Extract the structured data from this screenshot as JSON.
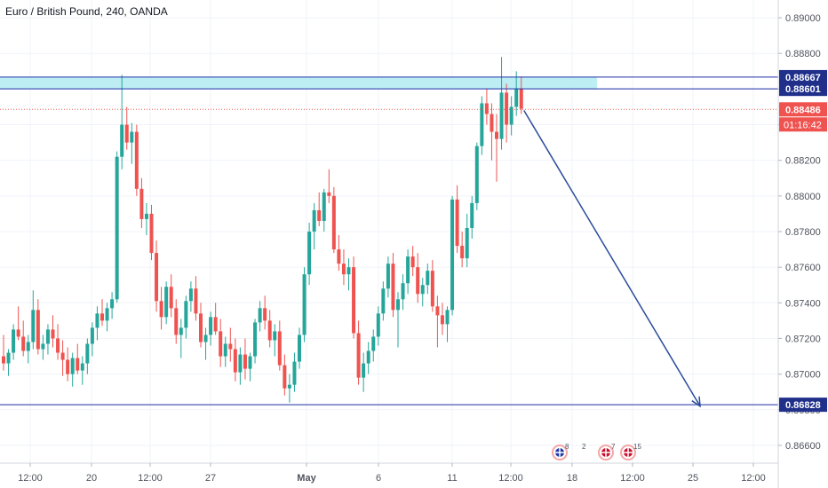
{
  "header": {
    "title": "Euro / British Pound, 240, OANDA"
  },
  "colors": {
    "up": "#26a69a",
    "down": "#ef5350",
    "line": "#1e2ea6",
    "arrow": "#2a4b9b",
    "zone": "#b2ebf2",
    "dark_tag": "#1f2f8a",
    "grid": "#f0f3fa",
    "axis_text": "#50535e"
  },
  "chart_data": {
    "type": "candlestick",
    "title": "Euro / British Pound, 240, OANDA",
    "ylim": [
      0.865,
      0.891
    ],
    "y_ticks": [
      "0.86600",
      "0.86800",
      "0.87000",
      "0.87200",
      "0.87400",
      "0.87600",
      "0.87800",
      "0.88000",
      "0.88200",
      "0.88400",
      "0.88600",
      "0.88800",
      "0.89000"
    ],
    "x_ticks": [
      "12:00",
      "20",
      "12:00",
      "27",
      "May",
      "6",
      "11",
      "12:00",
      "18",
      "12:00",
      "25",
      "12:00"
    ],
    "grid": true,
    "levels": [
      {
        "label": "0.88667",
        "value": 0.88667,
        "style": "line"
      },
      {
        "label": "0.88601",
        "value": 0.88601,
        "style": "line"
      },
      {
        "label": "0.86828",
        "value": 0.86828,
        "style": "line"
      },
      {
        "label": "0.88486",
        "value": 0.88486,
        "style": "current-price"
      }
    ],
    "zone": {
      "from": 0.88601,
      "to": 0.88667
    },
    "countdown": "01:16:42",
    "projection": {
      "from": 0.8848,
      "to": 0.8682
    },
    "event_badges": [
      {
        "count": "8",
        "flags": [
          "EU",
          "GB"
        ]
      },
      {
        "count": "2",
        "flags": []
      },
      {
        "count": "7",
        "flags": [
          "GB"
        ]
      },
      {
        "count": "15",
        "flags": [
          "GB"
        ]
      }
    ],
    "candles": [
      [
        0.871,
        0.8722,
        0.8702,
        0.8706
      ],
      [
        0.8706,
        0.8714,
        0.8699,
        0.8712
      ],
      [
        0.8712,
        0.8728,
        0.8708,
        0.8725
      ],
      [
        0.8725,
        0.8738,
        0.8719,
        0.8721
      ],
      [
        0.8721,
        0.873,
        0.871,
        0.8713
      ],
      [
        0.8713,
        0.8722,
        0.8706,
        0.8718
      ],
      [
        0.8718,
        0.8747,
        0.8714,
        0.8736
      ],
      [
        0.8736,
        0.8742,
        0.8711,
        0.8714
      ],
      [
        0.8714,
        0.8722,
        0.8708,
        0.8717
      ],
      [
        0.8717,
        0.8728,
        0.8711,
        0.8725
      ],
      [
        0.8725,
        0.8733,
        0.8715,
        0.872
      ],
      [
        0.872,
        0.8728,
        0.8708,
        0.8712
      ],
      [
        0.8712,
        0.8719,
        0.8699,
        0.8708
      ],
      [
        0.8708,
        0.8715,
        0.8696,
        0.87
      ],
      [
        0.87,
        0.8712,
        0.8693,
        0.8709
      ],
      [
        0.8709,
        0.8717,
        0.87,
        0.8702
      ],
      [
        0.8702,
        0.871,
        0.8694,
        0.8706
      ],
      [
        0.8706,
        0.872,
        0.87,
        0.8717
      ],
      [
        0.8717,
        0.8729,
        0.871,
        0.8726
      ],
      [
        0.8726,
        0.8738,
        0.8719,
        0.8734
      ],
      [
        0.8734,
        0.8742,
        0.8727,
        0.873
      ],
      [
        0.873,
        0.874,
        0.8724,
        0.8737
      ],
      [
        0.8737,
        0.8746,
        0.8731,
        0.8742
      ],
      [
        0.8742,
        0.8825,
        0.874,
        0.8822
      ],
      [
        0.8822,
        0.8868,
        0.8815,
        0.884
      ],
      [
        0.884,
        0.885,
        0.8826,
        0.883
      ],
      [
        0.883,
        0.8841,
        0.8818,
        0.8836
      ],
      [
        0.8836,
        0.884,
        0.88,
        0.8804
      ],
      [
        0.8804,
        0.881,
        0.8782,
        0.8787
      ],
      [
        0.8787,
        0.8796,
        0.8778,
        0.879
      ],
      [
        0.879,
        0.8795,
        0.8764,
        0.8768
      ],
      [
        0.8768,
        0.8775,
        0.8735,
        0.8741
      ],
      [
        0.8741,
        0.8749,
        0.8725,
        0.8732
      ],
      [
        0.8732,
        0.8752,
        0.8728,
        0.8749
      ],
      [
        0.8749,
        0.8756,
        0.8732,
        0.8737
      ],
      [
        0.8737,
        0.8742,
        0.8717,
        0.8722
      ],
      [
        0.8722,
        0.8731,
        0.8709,
        0.8726
      ],
      [
        0.8726,
        0.8744,
        0.872,
        0.8741
      ],
      [
        0.8741,
        0.8752,
        0.8735,
        0.8748
      ],
      [
        0.8748,
        0.8755,
        0.873,
        0.8734
      ],
      [
        0.8734,
        0.874,
        0.8715,
        0.8718
      ],
      [
        0.8718,
        0.8726,
        0.8708,
        0.8722
      ],
      [
        0.8722,
        0.8735,
        0.8716,
        0.8732
      ],
      [
        0.8732,
        0.874,
        0.8722,
        0.8724
      ],
      [
        0.8724,
        0.8731,
        0.8704,
        0.871
      ],
      [
        0.871,
        0.8721,
        0.8704,
        0.8717
      ],
      [
        0.8717,
        0.8726,
        0.8707,
        0.8714
      ],
      [
        0.8714,
        0.872,
        0.8696,
        0.8701
      ],
      [
        0.8701,
        0.8715,
        0.8694,
        0.8711
      ],
      [
        0.8711,
        0.872,
        0.8697,
        0.8703
      ],
      [
        0.8703,
        0.8712,
        0.8696,
        0.871
      ],
      [
        0.871,
        0.8731,
        0.8706,
        0.8729
      ],
      [
        0.8729,
        0.8741,
        0.8724,
        0.8737
      ],
      [
        0.8737,
        0.8744,
        0.8725,
        0.873
      ],
      [
        0.873,
        0.8736,
        0.8715,
        0.8719
      ],
      [
        0.8719,
        0.8728,
        0.871,
        0.8724
      ],
      [
        0.8724,
        0.873,
        0.8702,
        0.8705
      ],
      [
        0.8705,
        0.8711,
        0.8688,
        0.8692
      ],
      [
        0.8692,
        0.87,
        0.8684,
        0.8694
      ],
      [
        0.8694,
        0.8712,
        0.869,
        0.8707
      ],
      [
        0.8707,
        0.8726,
        0.8703,
        0.8722
      ],
      [
        0.8722,
        0.876,
        0.8718,
        0.8756
      ],
      [
        0.8756,
        0.8785,
        0.875,
        0.878
      ],
      [
        0.878,
        0.8796,
        0.877,
        0.8792
      ],
      [
        0.8792,
        0.8802,
        0.8783,
        0.8786
      ],
      [
        0.8786,
        0.8804,
        0.878,
        0.8802
      ],
      [
        0.8802,
        0.8815,
        0.8796,
        0.88
      ],
      [
        0.88,
        0.8805,
        0.8768,
        0.877
      ],
      [
        0.877,
        0.8778,
        0.8758,
        0.8762
      ],
      [
        0.8762,
        0.877,
        0.875,
        0.8756
      ],
      [
        0.8756,
        0.8765,
        0.8747,
        0.876
      ],
      [
        0.876,
        0.8766,
        0.872,
        0.8723
      ],
      [
        0.8723,
        0.873,
        0.8694,
        0.8698
      ],
      [
        0.8698,
        0.8712,
        0.869,
        0.8706
      ],
      [
        0.8706,
        0.8718,
        0.87,
        0.8713
      ],
      [
        0.8713,
        0.8725,
        0.8707,
        0.8721
      ],
      [
        0.8721,
        0.8738,
        0.8716,
        0.8734
      ],
      [
        0.8734,
        0.8752,
        0.873,
        0.8748
      ],
      [
        0.8748,
        0.8766,
        0.8743,
        0.8762
      ],
      [
        0.8762,
        0.8768,
        0.8732,
        0.8736
      ],
      [
        0.8736,
        0.8746,
        0.8715,
        0.8742
      ],
      [
        0.8742,
        0.8756,
        0.8736,
        0.8751
      ],
      [
        0.8751,
        0.877,
        0.8745,
        0.8766
      ],
      [
        0.8766,
        0.8772,
        0.8755,
        0.876
      ],
      [
        0.876,
        0.8768,
        0.874,
        0.8745
      ],
      [
        0.8745,
        0.8754,
        0.8738,
        0.875
      ],
      [
        0.875,
        0.8762,
        0.8745,
        0.8758
      ],
      [
        0.8758,
        0.8764,
        0.8735,
        0.8738
      ],
      [
        0.8738,
        0.8744,
        0.8715,
        0.8733
      ],
      [
        0.8733,
        0.874,
        0.8722,
        0.8728
      ],
      [
        0.8728,
        0.8738,
        0.8718,
        0.8736
      ],
      [
        0.8736,
        0.88,
        0.8733,
        0.8798
      ],
      [
        0.8798,
        0.8806,
        0.8768,
        0.8772
      ],
      [
        0.8772,
        0.878,
        0.876,
        0.8765
      ],
      [
        0.8765,
        0.879,
        0.876,
        0.8782
      ],
      [
        0.8782,
        0.88,
        0.8776,
        0.8796
      ],
      [
        0.8796,
        0.883,
        0.8792,
        0.8828
      ],
      [
        0.8828,
        0.8856,
        0.8823,
        0.8852
      ],
      [
        0.8852,
        0.886,
        0.884,
        0.8846
      ],
      [
        0.8846,
        0.8852,
        0.882,
        0.8836
      ],
      [
        0.8836,
        0.8846,
        0.8808,
        0.8832
      ],
      [
        0.8832,
        0.8878,
        0.8826,
        0.8858
      ],
      [
        0.8858,
        0.8863,
        0.883,
        0.884
      ],
      [
        0.884,
        0.8856,
        0.8834,
        0.885
      ],
      [
        0.885,
        0.887,
        0.8845,
        0.886
      ],
      [
        0.886,
        0.8867,
        0.8846,
        0.8849
      ]
    ]
  }
}
